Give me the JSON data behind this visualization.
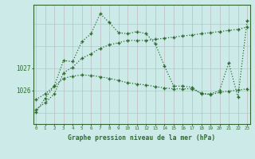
{
  "xlabel": "Graphe pression niveau de la mer (hPa)",
  "bg_color": "#cceae8",
  "line_color": "#2d6b2d",
  "vgrid_color": "#c8d8d0",
  "hgrid_color": "#b8d8d0",
  "ylim": [
    1024.5,
    1029.85
  ],
  "xlim": [
    -0.3,
    23.3
  ],
  "xticks": [
    0,
    1,
    2,
    3,
    4,
    5,
    6,
    7,
    8,
    9,
    10,
    11,
    12,
    13,
    14,
    15,
    16,
    17,
    18,
    19,
    20,
    21,
    22,
    23
  ],
  "ytick_vals": [
    1026,
    1027
  ],
  "line1_x": [
    0,
    1,
    2,
    3,
    4,
    5,
    6,
    7,
    8,
    9,
    10,
    11,
    12,
    13,
    14,
    15,
    16,
    17,
    18,
    19,
    20,
    21,
    22,
    23
  ],
  "line1_y": [
    1025.15,
    1025.45,
    1025.85,
    1026.8,
    1027.05,
    1027.45,
    1027.65,
    1027.9,
    1028.05,
    1028.15,
    1028.25,
    1028.25,
    1028.25,
    1028.3,
    1028.35,
    1028.4,
    1028.45,
    1028.5,
    1028.55,
    1028.6,
    1028.65,
    1028.7,
    1028.75,
    1028.85
  ],
  "line2_x": [
    0,
    1,
    2,
    3,
    4,
    5,
    6,
    7,
    8,
    9,
    10,
    11,
    12,
    13,
    14,
    15,
    16,
    17,
    18,
    19,
    20,
    21,
    22,
    23
  ],
  "line2_y": [
    1025.6,
    1025.85,
    1026.2,
    1027.35,
    1027.3,
    1028.2,
    1028.55,
    1029.45,
    1029.05,
    1028.6,
    1028.55,
    1028.65,
    1028.55,
    1028.1,
    1027.1,
    1026.2,
    1026.2,
    1026.15,
    1025.85,
    1025.85,
    1026.0,
    1027.25,
    1025.7,
    1029.15
  ],
  "line3_x": [
    0,
    1,
    2,
    3,
    4,
    5,
    6,
    7,
    8,
    9,
    10,
    11,
    12,
    13,
    14,
    15,
    16,
    17,
    18,
    19,
    20,
    21,
    22,
    23
  ],
  "line3_y": [
    1025.05,
    1025.65,
    1026.2,
    1026.55,
    1026.65,
    1026.7,
    1026.68,
    1026.62,
    1026.55,
    1026.45,
    1026.35,
    1026.3,
    1026.25,
    1026.18,
    1026.12,
    1026.08,
    1026.08,
    1026.08,
    1025.88,
    1025.82,
    1025.92,
    1025.98,
    1026.02,
    1026.08
  ]
}
